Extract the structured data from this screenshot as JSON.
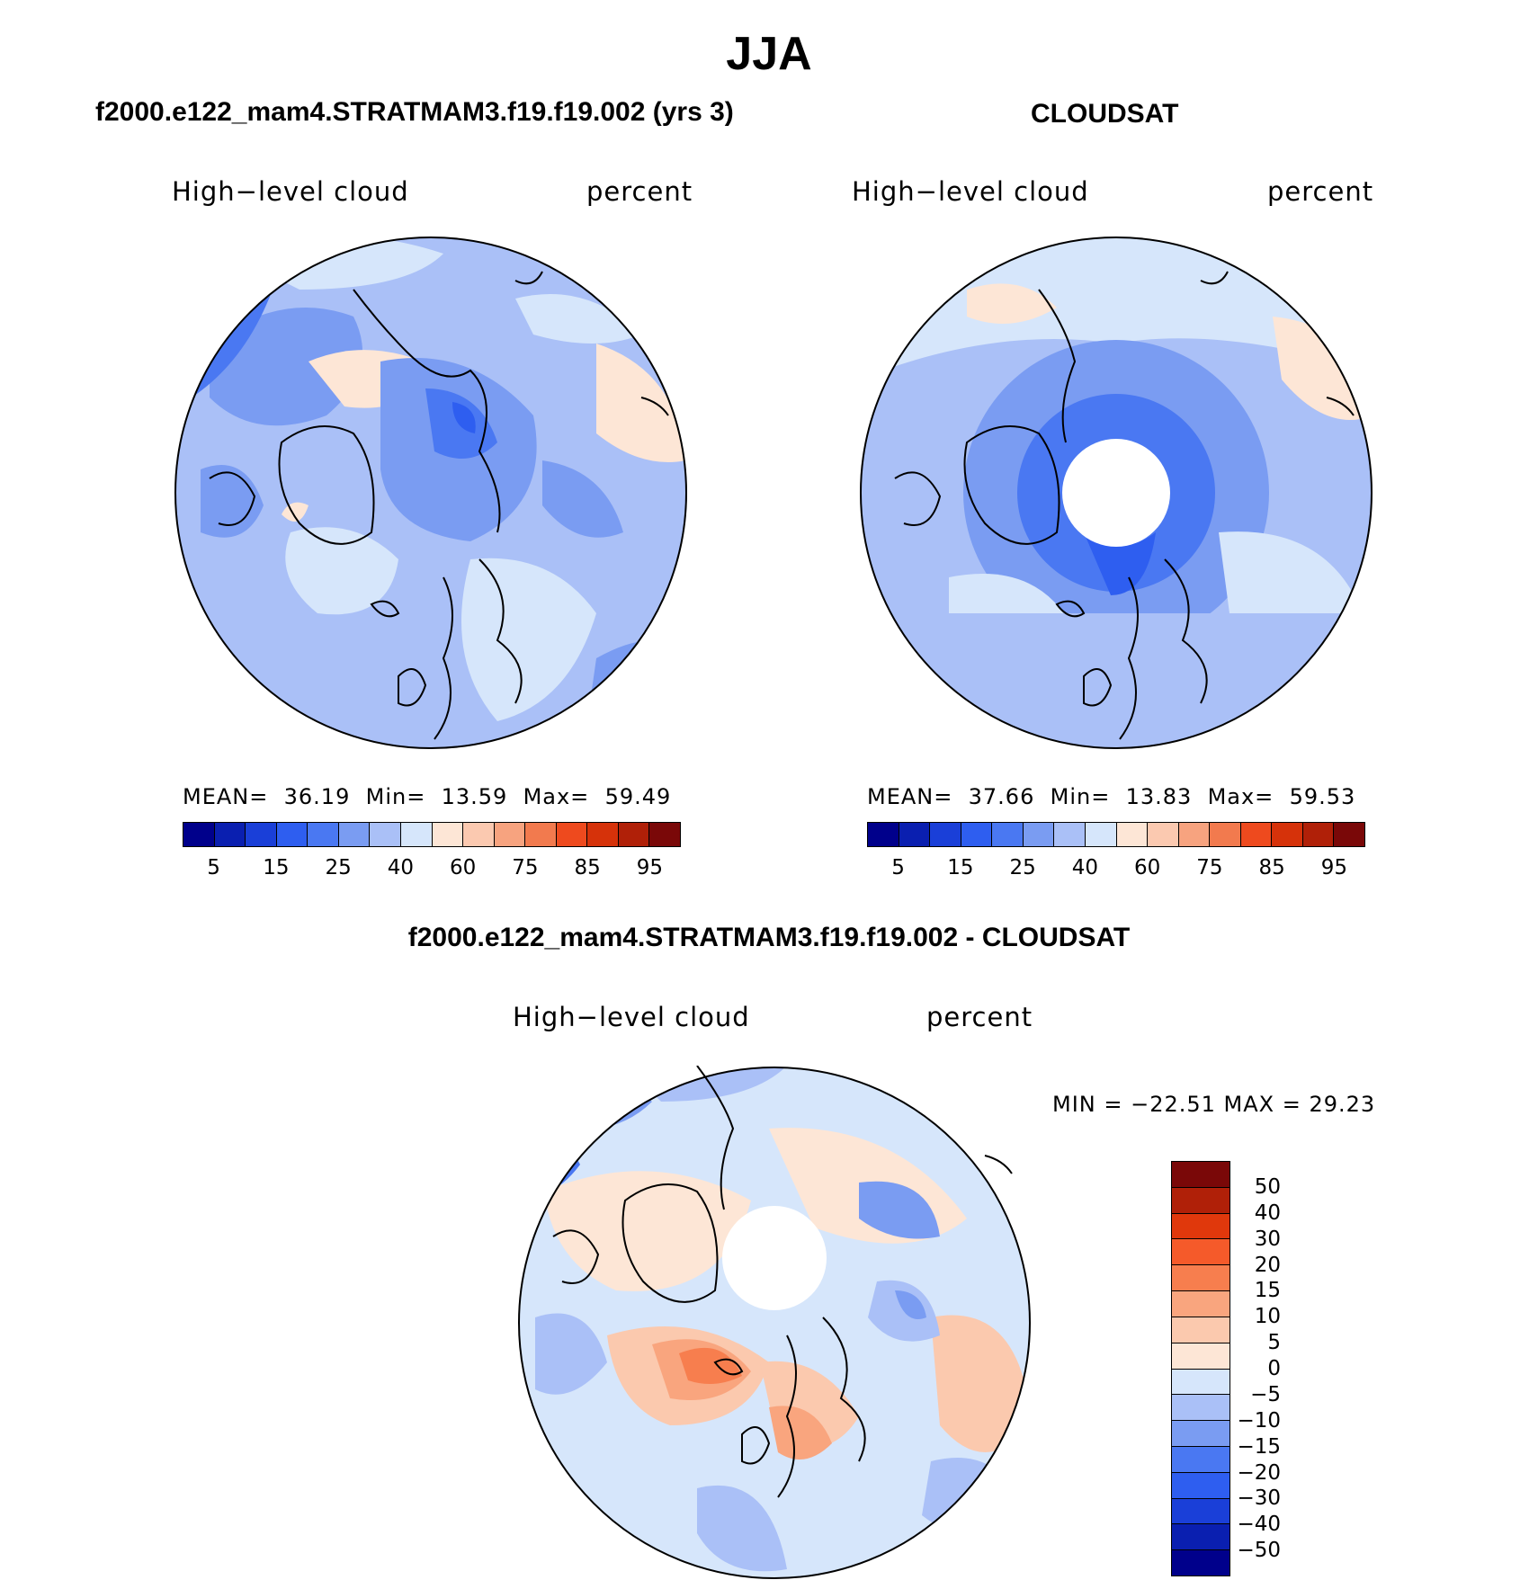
{
  "title": "JJA",
  "panel_left": {
    "subtitle": "f2000.e122_mam4.STRATMAM3.f19.f19.002 (yrs 3)",
    "variable": "High−level cloud",
    "units": "percent",
    "mean_label": "MEAN=",
    "mean": "36.19",
    "min_label": "Min=",
    "min": "13.59",
    "max_label": "Max=",
    "max": "59.49"
  },
  "panel_right": {
    "subtitle": "CLOUDSAT",
    "variable": "High−level cloud",
    "units": "percent",
    "mean_label": "MEAN=",
    "mean": "37.66",
    "min_label": "Min=",
    "min": "13.83",
    "max_label": "Max=",
    "max": "59.53"
  },
  "panel_diff": {
    "subtitle": "f2000.e122_mam4.STRATMAM3.f19.f19.002 - CLOUDSAT",
    "variable": "High−level cloud",
    "units": "percent",
    "minmax": "MIN = −22.51 MAX =  29.23"
  },
  "colorbar_main": {
    "colors": [
      "#00008b",
      "#0a1fb0",
      "#1a3fd8",
      "#2e5ef0",
      "#4a78f2",
      "#7a9cf2",
      "#aac0f7",
      "#d6e6fb",
      "#fde6d6",
      "#fbc9b0",
      "#f7a37f",
      "#f27a4e",
      "#ee4a1e",
      "#d6320a",
      "#b02008",
      "#7a0808"
    ],
    "tick_labels": [
      "5",
      "15",
      "25",
      "40",
      "60",
      "75",
      "85",
      "95"
    ]
  },
  "colorbar_diff": {
    "colors": [
      "#7a0808",
      "#b02008",
      "#e0380c",
      "#f55a2a",
      "#f77e4e",
      "#f9a57e",
      "#fbc9ae",
      "#fde6d6",
      "#d6e6fb",
      "#aac0f7",
      "#7a9cf2",
      "#4a78f2",
      "#2e5ef0",
      "#1a3fd8",
      "#0a1fb0",
      "#00008b"
    ],
    "tick_labels": [
      "50",
      "40",
      "30",
      "20",
      "15",
      "10",
      "5",
      "0",
      "−5",
      "−10",
      "−15",
      "−20",
      "−30",
      "−40",
      "−50"
    ]
  }
}
